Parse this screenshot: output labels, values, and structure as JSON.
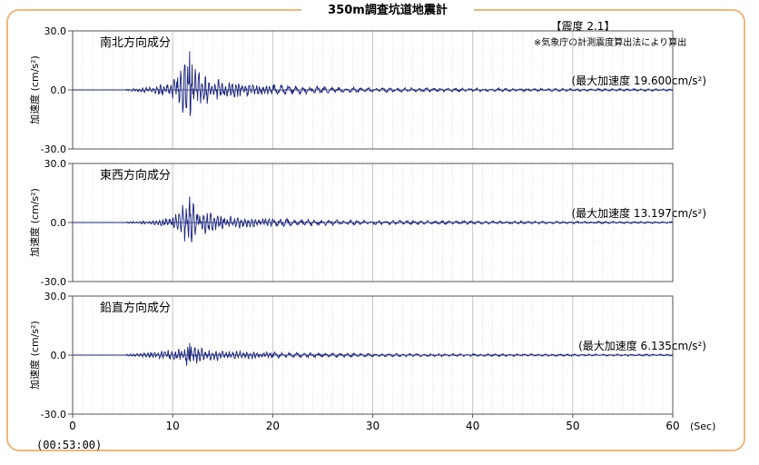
{
  "title": "350m調査坑道地震計",
  "intensity_label": "【震度 2.1】",
  "intensity_note": "※気象庁の計測震度算出法により算出",
  "timestamp": "(00:53:00)",
  "colors": {
    "frame": "#f0b87a",
    "trace": "#1a237e",
    "grid": "#9e9e9e",
    "baseline": "#1a237e"
  },
  "chart_data": {
    "type": "line",
    "x_unit": "(Sec)",
    "xlim": [
      0,
      60
    ],
    "xticks": [
      "0",
      "10",
      "20",
      "30",
      "40",
      "50",
      "60"
    ],
    "panels": [
      {
        "name": "南北方向成分",
        "peak_label": "(最大加速度 19.600cm/s²)",
        "peak_value": 19.6,
        "ylabel": "加速度 (cm/s²)",
        "ylim": [
          -30,
          30
        ],
        "yticks": [
          "30.0",
          "0.0",
          "-30.0"
        ],
        "envelope": {
          "t": [
            0,
            5.5,
            8,
            9,
            10,
            10.8,
            11.5,
            12,
            12.5,
            13,
            14,
            15,
            17,
            20,
            25,
            30,
            40,
            50,
            60
          ],
          "a": [
            0,
            0.3,
            1.0,
            2.0,
            3.5,
            7.0,
            12.0,
            8.0,
            6.5,
            5.0,
            4.0,
            3.2,
            2.5,
            1.8,
            1.2,
            0.8,
            0.6,
            0.5,
            0.4
          ]
        }
      },
      {
        "name": "東西方向成分",
        "peak_label": "(最大加速度 13.197cm/s²)",
        "peak_value": 13.197,
        "ylabel": "加速度 (cm/s²)",
        "ylim": [
          -30,
          30
        ],
        "yticks": [
          "30.0",
          "0.0",
          "-30.0"
        ],
        "envelope": {
          "t": [
            0,
            5.5,
            8,
            9,
            10,
            10.8,
            11.5,
            12,
            12.5,
            13,
            14,
            15,
            17,
            20,
            25,
            30,
            40,
            50,
            60
          ],
          "a": [
            0,
            0.3,
            0.8,
            1.5,
            3.0,
            6.0,
            10.0,
            8.5,
            6.5,
            5.0,
            3.8,
            3.0,
            2.3,
            1.7,
            1.2,
            0.9,
            0.7,
            0.5,
            0.4
          ]
        }
      },
      {
        "name": "鉛直方向成分",
        "peak_label": "(最大加速度 6.135cm/s²)",
        "peak_value": 6.135,
        "ylabel": "加速度 (cm/s²)",
        "ylim": [
          -30,
          30
        ],
        "yticks": [
          "30.0",
          "0.0",
          "-30.0"
        ],
        "envelope": {
          "t": [
            0,
            5.5,
            8,
            9,
            10,
            10.8,
            11.5,
            12,
            12.5,
            13,
            14,
            15,
            17,
            20,
            25,
            30,
            40,
            50,
            60
          ],
          "a": [
            0,
            0.4,
            1.2,
            1.8,
            2.5,
            3.5,
            5.0,
            4.0,
            3.5,
            3.0,
            2.5,
            2.0,
            1.6,
            1.3,
            1.0,
            0.8,
            0.6,
            0.5,
            0.4
          ]
        }
      }
    ]
  }
}
